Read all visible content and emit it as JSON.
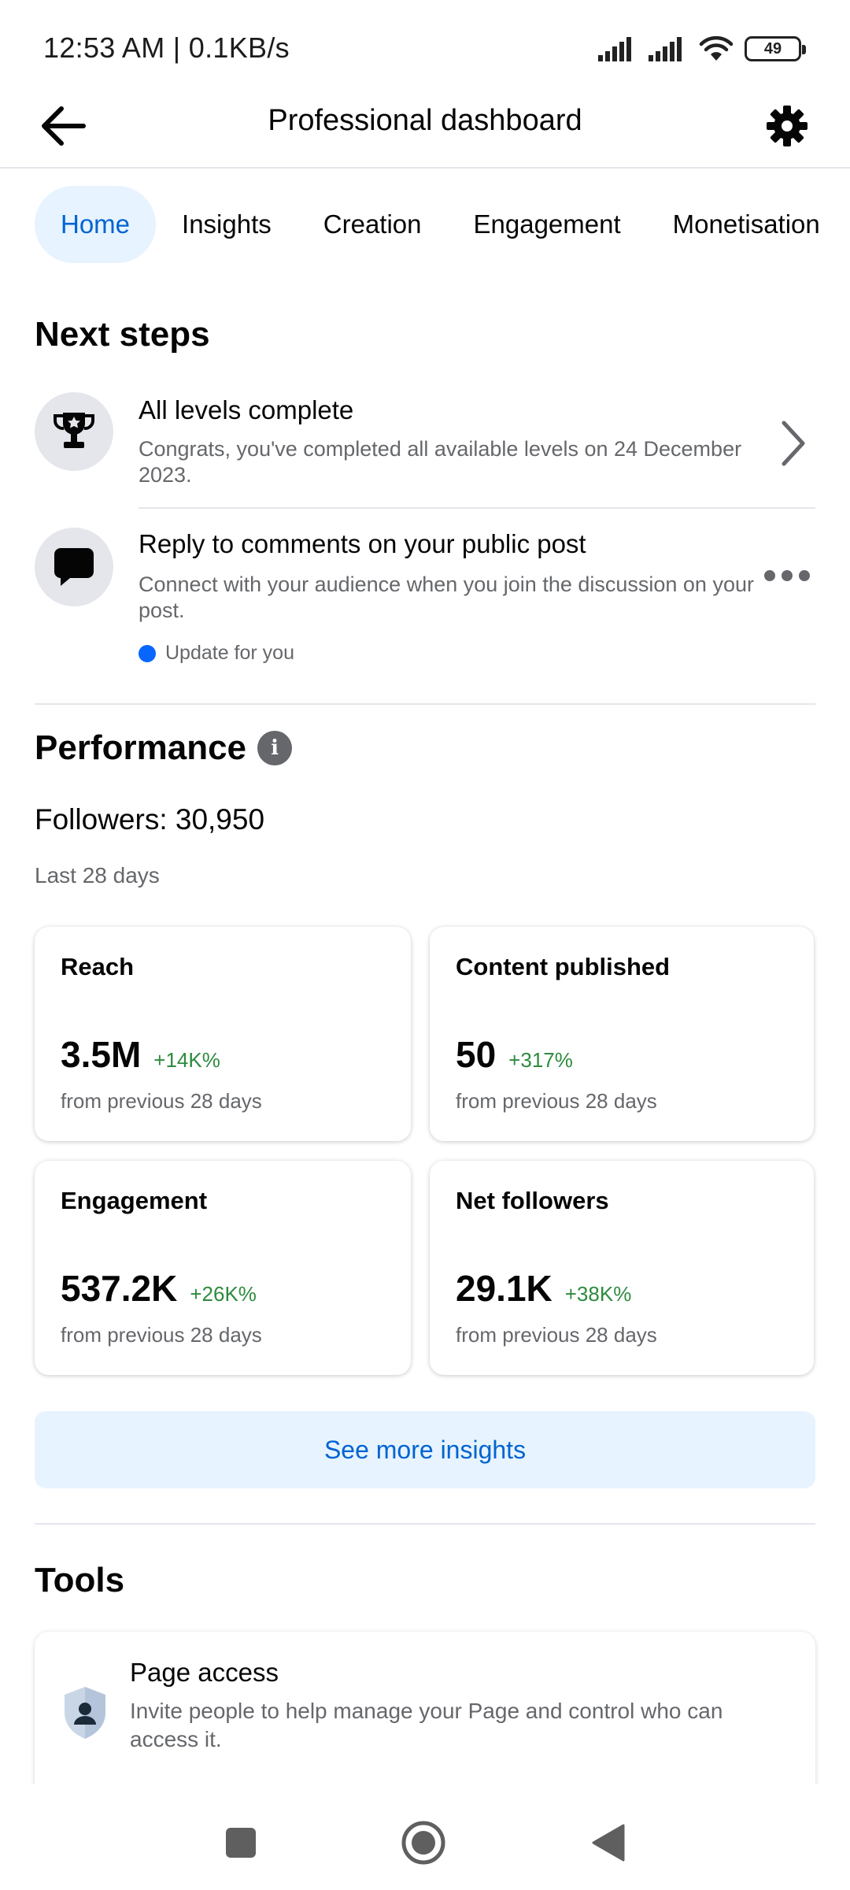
{
  "status_bar": {
    "time": "12:53 AM | 0.1KB/s",
    "battery": "49"
  },
  "header": {
    "title": "Professional dashboard",
    "back_icon": "arrow-left-icon",
    "settings_icon": "gear-icon"
  },
  "tabs": [
    {
      "label": "Home",
      "active": true
    },
    {
      "label": "Insights",
      "active": false
    },
    {
      "label": "Creation",
      "active": false
    },
    {
      "label": "Engagement",
      "active": false
    },
    {
      "label": "Monetisation",
      "active": false
    }
  ],
  "next_steps": {
    "title": "Next steps",
    "items": [
      {
        "title": "All levels complete",
        "description": "Congrats, you've completed all available levels on 24 December 2023.",
        "icon": "trophy-icon"
      },
      {
        "title": "Reply to comments on your public post",
        "description": "Connect with your audience when you join the discussion on your post.",
        "tag": "Update for you",
        "icon": "comment-icon"
      }
    ]
  },
  "performance": {
    "title": "Performance",
    "followers": "Followers: 30,950",
    "period": "Last 28 days",
    "cards": [
      {
        "title": "Reach",
        "value": "3.5M",
        "change": "+14K%",
        "sub": "from previous 28 days"
      },
      {
        "title": "Content published",
        "value": "50",
        "change": "+317%",
        "sub": "from previous 28 days"
      },
      {
        "title": "Engagement",
        "value": "537.2K",
        "change": "+26K%",
        "sub": "from previous 28 days"
      },
      {
        "title": "Net followers",
        "value": "29.1K",
        "change": "+38K%",
        "sub": "from previous 28 days"
      }
    ],
    "see_more": "See more insights"
  },
  "tools": {
    "title": "Tools",
    "items": [
      {
        "title": "Page access",
        "description": "Invite people to help manage your Page and control who can access it."
      }
    ]
  },
  "colors": {
    "accent": "#0064d1",
    "accent_bg": "#e7f3ff",
    "positive": "#2e8b3e",
    "secondary_text": "#65676b"
  }
}
